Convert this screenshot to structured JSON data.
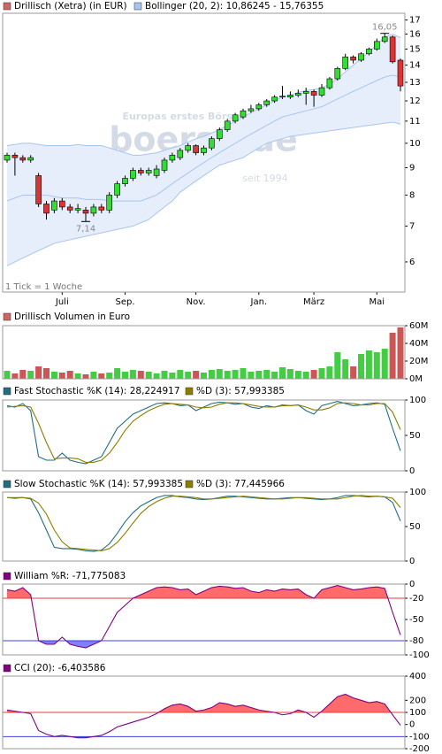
{
  "chart_data": [
    {
      "type": "candlestick",
      "series": [
        {
          "name": "Drillisch (Xetra) (in EUR)",
          "color": "#cc6666",
          "up_color": "#33dd33",
          "down_color": "#dd3333",
          "open": [
            9.3,
            9.5,
            9.4,
            9.3,
            8.7,
            7.7,
            7.5,
            7.8,
            7.6,
            7.5,
            7.5,
            7.4,
            7.6,
            7.5,
            8.0,
            8.4,
            8.6,
            8.9,
            8.8,
            8.7,
            8.9,
            9.3,
            9.4,
            9.7,
            9.9,
            9.6,
            9.8,
            10.2,
            10.6,
            11.0,
            11.2,
            11.5,
            11.6,
            11.8,
            12.0,
            12.2,
            12.2,
            12.3,
            12.4,
            12.5,
            12.3,
            12.7,
            13.2,
            13.8,
            14.5,
            14.3,
            14.7,
            15.0,
            15.5,
            15.8,
            14.3
          ],
          "high": [
            9.6,
            9.6,
            9.5,
            9.5,
            8.8,
            7.8,
            7.9,
            7.9,
            7.7,
            7.7,
            7.6,
            7.7,
            7.7,
            8.1,
            8.5,
            8.7,
            9.0,
            9.0,
            9.0,
            9.1,
            9.4,
            9.6,
            9.8,
            10.0,
            9.95,
            9.9,
            10.3,
            10.7,
            11.1,
            11.4,
            11.6,
            11.8,
            11.9,
            12.1,
            12.3,
            12.8,
            12.5,
            12.6,
            12.7,
            12.6,
            12.9,
            13.3,
            13.9,
            14.7,
            14.6,
            14.8,
            15.1,
            15.7,
            16.05,
            15.9,
            14.4
          ],
          "low": [
            9.2,
            8.7,
            9.2,
            9.2,
            7.6,
            7.2,
            7.4,
            7.5,
            7.4,
            7.4,
            7.14,
            7.3,
            7.4,
            7.4,
            7.9,
            8.3,
            8.5,
            8.7,
            8.7,
            8.6,
            8.8,
            9.2,
            9.3,
            9.6,
            9.5,
            9.5,
            9.7,
            10.1,
            10.5,
            10.9,
            11.1,
            11.4,
            11.5,
            11.7,
            11.9,
            12.1,
            12.1,
            12.2,
            11.8,
            11.7,
            12.2,
            12.6,
            13.1,
            13.7,
            14.1,
            14.2,
            14.6,
            14.9,
            15.4,
            14.1,
            12.5
          ],
          "close": [
            9.5,
            9.4,
            9.3,
            9.4,
            7.7,
            7.4,
            7.8,
            7.6,
            7.5,
            7.55,
            7.4,
            7.6,
            7.5,
            8.0,
            8.4,
            8.6,
            8.9,
            8.8,
            8.9,
            8.95,
            9.3,
            9.5,
            9.7,
            9.9,
            9.6,
            9.8,
            10.2,
            10.6,
            11.0,
            11.3,
            11.5,
            11.6,
            11.8,
            12.0,
            12.2,
            12.25,
            12.3,
            12.4,
            12.5,
            12.3,
            12.7,
            13.2,
            13.8,
            14.5,
            14.3,
            14.7,
            15.0,
            15.5,
            15.8,
            14.2,
            12.8
          ]
        }
      ],
      "bands": {
        "name": "Bollinger (20, 2): 10,86245 - 15,76355",
        "color": "#a8c4f0",
        "fill": "#e6eefc",
        "upper": [
          9.9,
          9.95,
          10.0,
          10.0,
          9.95,
          9.9,
          9.9,
          9.9,
          9.9,
          9.95,
          9.9,
          9.9,
          9.9,
          9.8,
          9.7,
          9.6,
          9.5,
          9.5,
          9.55,
          9.6,
          9.7,
          9.8,
          9.9,
          10.05,
          10.2,
          10.3,
          10.45,
          10.6,
          10.8,
          11.0,
          11.2,
          11.4,
          11.6,
          11.8,
          12.0,
          12.2,
          12.3,
          12.45,
          12.55,
          12.6,
          12.7,
          12.9,
          13.2,
          13.6,
          14.0,
          14.4,
          14.8,
          15.3,
          15.8,
          16.0,
          15.76
        ],
        "middle": [
          7.8,
          7.9,
          8.0,
          8.0,
          8.0,
          8.0,
          7.95,
          7.9,
          7.9,
          7.9,
          7.85,
          7.85,
          7.85,
          7.8,
          7.8,
          7.8,
          7.8,
          7.8,
          7.9,
          8.0,
          8.2,
          8.4,
          8.6,
          8.8,
          9.0,
          9.2,
          9.4,
          9.6,
          9.8,
          10.0,
          10.2,
          10.4,
          10.6,
          10.8,
          11.0,
          11.2,
          11.3,
          11.4,
          11.5,
          11.6,
          11.7,
          11.9,
          12.1,
          12.3,
          12.5,
          12.7,
          12.9,
          13.1,
          13.3,
          13.4,
          13.3
        ],
        "lower": [
          5.9,
          6.0,
          6.1,
          6.2,
          6.3,
          6.4,
          6.5,
          6.55,
          6.6,
          6.65,
          6.7,
          6.75,
          6.8,
          6.85,
          6.9,
          6.95,
          7.0,
          7.1,
          7.2,
          7.4,
          7.6,
          7.8,
          8.1,
          8.3,
          8.5,
          8.7,
          8.9,
          9.1,
          9.2,
          9.3,
          9.4,
          9.6,
          9.8,
          10.0,
          10.1,
          10.2,
          10.3,
          10.35,
          10.4,
          10.45,
          10.5,
          10.55,
          10.6,
          10.65,
          10.7,
          10.75,
          10.8,
          10.85,
          10.9,
          10.95,
          10.86
        ]
      },
      "categories": [
        null,
        null,
        null,
        null,
        null,
        null,
        null,
        "Juli",
        null,
        null,
        null,
        null,
        null,
        null,
        null,
        "Sep.",
        null,
        null,
        null,
        null,
        null,
        null,
        null,
        null,
        "Nov.",
        null,
        null,
        null,
        null,
        null,
        null,
        null,
        "Jan.",
        null,
        null,
        null,
        null,
        null,
        null,
        "März",
        null,
        null,
        null,
        null,
        null,
        null,
        null,
        "Mai",
        null,
        null,
        null
      ],
      "log_scale": true,
      "ylim": [
        5.27,
        17.5
      ],
      "yticks": [
        6,
        7,
        8,
        9,
        10,
        11,
        12,
        13,
        14,
        15,
        16,
        17
      ],
      "annotations": [
        {
          "label": "16,05",
          "value": 16.05
        },
        {
          "label": "7,14",
          "value": 7.14
        }
      ],
      "note": "1 Tick = 1 Woche",
      "watermark": [
        "Europas erstes Börsenportal",
        "boerse.de",
        "seit 1994"
      ]
    },
    {
      "type": "bar",
      "title": "Drillisch Volumen in Euro",
      "color": "#cc6666",
      "up_color": "#44cc44",
      "down_color": "#cc5555",
      "values": [
        9,
        6,
        10,
        9,
        14,
        12,
        8,
        7,
        9,
        6,
        5,
        8,
        6,
        7,
        12,
        8,
        10,
        9,
        8,
        6,
        9,
        7,
        10,
        8,
        9,
        7,
        10,
        11,
        9,
        10,
        12,
        8,
        9,
        10,
        8,
        13,
        11,
        9,
        8,
        10,
        12,
        14,
        30,
        22,
        14,
        28,
        32,
        30,
        34,
        52,
        58
      ],
      "ylim": [
        0,
        60
      ],
      "yticks": [
        {
          "value": 0,
          "label": "0M"
        },
        {
          "value": 20,
          "label": "20M"
        },
        {
          "value": 40,
          "label": "40M"
        },
        {
          "value": 60,
          "label": "60M"
        }
      ]
    },
    {
      "type": "line",
      "ylim": [
        0,
        100
      ],
      "yticks": [
        0,
        50,
        100
      ],
      "series": [
        {
          "name": "Fast Stochastic %K (14): 28,224917",
          "color": "#1f6f80",
          "values": [
            92,
            90,
            95,
            85,
            20,
            15,
            15,
            25,
            15,
            12,
            10,
            15,
            20,
            40,
            60,
            70,
            80,
            85,
            90,
            95,
            96,
            95,
            92,
            93,
            85,
            90,
            95,
            97,
            96,
            94,
            95,
            90,
            88,
            92,
            90,
            93,
            92,
            93,
            85,
            80,
            92,
            95,
            98,
            95,
            92,
            93,
            95,
            96,
            94,
            60,
            28.224917
          ]
        },
        {
          "name": "%D (3): 57,993385",
          "color": "#8b7d00",
          "values": [
            90,
            91,
            92,
            90,
            67,
            40,
            17,
            18,
            18,
            17,
            12,
            12,
            15,
            25,
            40,
            57,
            70,
            78,
            85,
            90,
            94,
            95,
            94,
            93,
            90,
            89,
            90,
            94,
            96,
            96,
            95,
            93,
            91,
            90,
            90,
            92,
            92,
            93,
            90,
            86,
            86,
            89,
            95,
            96,
            95,
            93,
            93,
            95,
            95,
            83,
            57.993385
          ]
        }
      ]
    },
    {
      "type": "line",
      "ylim": [
        0,
        100
      ],
      "yticks": [
        0,
        50,
        100
      ],
      "series": [
        {
          "name": "Slow Stochastic %K (14): 57,993385",
          "color": "#1f6f80",
          "values": [
            92,
            91,
            92,
            90,
            70,
            45,
            20,
            18,
            18,
            17,
            15,
            14,
            16,
            25,
            40,
            57,
            70,
            80,
            86,
            92,
            95,
            95,
            93,
            92,
            90,
            89,
            90,
            92,
            94,
            94,
            93,
            92,
            91,
            90,
            90,
            91,
            92,
            92,
            91,
            90,
            89,
            90,
            92,
            95,
            95,
            94,
            93,
            94,
            93,
            85,
            57.993385
          ]
        },
        {
          "name": "%D (3): 77,445966",
          "color": "#8b7d00",
          "values": [
            92,
            92,
            92,
            91,
            84,
            68,
            45,
            28,
            19,
            18,
            17,
            16,
            15,
            18,
            27,
            40,
            55,
            69,
            79,
            86,
            91,
            94,
            94,
            93,
            92,
            90,
            90,
            91,
            92,
            93,
            94,
            93,
            92,
            91,
            90,
            90,
            91,
            92,
            92,
            91,
            90,
            90,
            90,
            92,
            94,
            95,
            94,
            94,
            93,
            91,
            77.445966
          ]
        }
      ]
    },
    {
      "type": "line",
      "ylim": [
        -100,
        0
      ],
      "yticks": [
        0,
        -20,
        -50,
        -80,
        -100
      ],
      "hlines": [
        {
          "value": -20,
          "color": "#e04040",
          "fill": "#ff6a6a",
          "side": "above"
        },
        {
          "value": -80,
          "color": "#4040e0",
          "fill": "#7f7fff",
          "side": "below"
        }
      ],
      "series": [
        {
          "name": "William %R: -71,775083",
          "color": "#800080",
          "values": [
            -8,
            -10,
            -5,
            -15,
            -80,
            -85,
            -85,
            -75,
            -85,
            -88,
            -90,
            -85,
            -80,
            -60,
            -40,
            -30,
            -20,
            -15,
            -10,
            -5,
            -4,
            -5,
            -8,
            -7,
            -15,
            -10,
            -5,
            -3,
            -4,
            -6,
            -5,
            -10,
            -12,
            -8,
            -10,
            -7,
            -8,
            -7,
            -15,
            -20,
            -8,
            -5,
            -2,
            -5,
            -8,
            -7,
            -5,
            -4,
            -6,
            -40,
            -71.775083
          ]
        }
      ]
    },
    {
      "type": "line",
      "ylim": [
        -200,
        400
      ],
      "yticks": [
        400,
        200,
        100,
        0,
        -100,
        -200
      ],
      "hlines": [
        {
          "value": 100,
          "color": "#e04040",
          "fill": "#ff6a6a",
          "side": "above"
        },
        {
          "value": -100,
          "color": "#4040e0",
          "fill": "#7f7fff",
          "side": "below"
        }
      ],
      "series": [
        {
          "name": "CCI (20): -6,403586",
          "color": "#800080",
          "values": [
            120,
            110,
            100,
            90,
            -50,
            -80,
            -100,
            -90,
            -100,
            -110,
            -110,
            -100,
            -90,
            -60,
            -20,
            0,
            20,
            40,
            60,
            90,
            130,
            160,
            170,
            150,
            110,
            120,
            140,
            180,
            170,
            150,
            160,
            140,
            120,
            110,
            100,
            80,
            90,
            120,
            100,
            60,
            110,
            170,
            230,
            250,
            220,
            200,
            180,
            190,
            170,
            80,
            -6.403586
          ]
        }
      ]
    }
  ]
}
